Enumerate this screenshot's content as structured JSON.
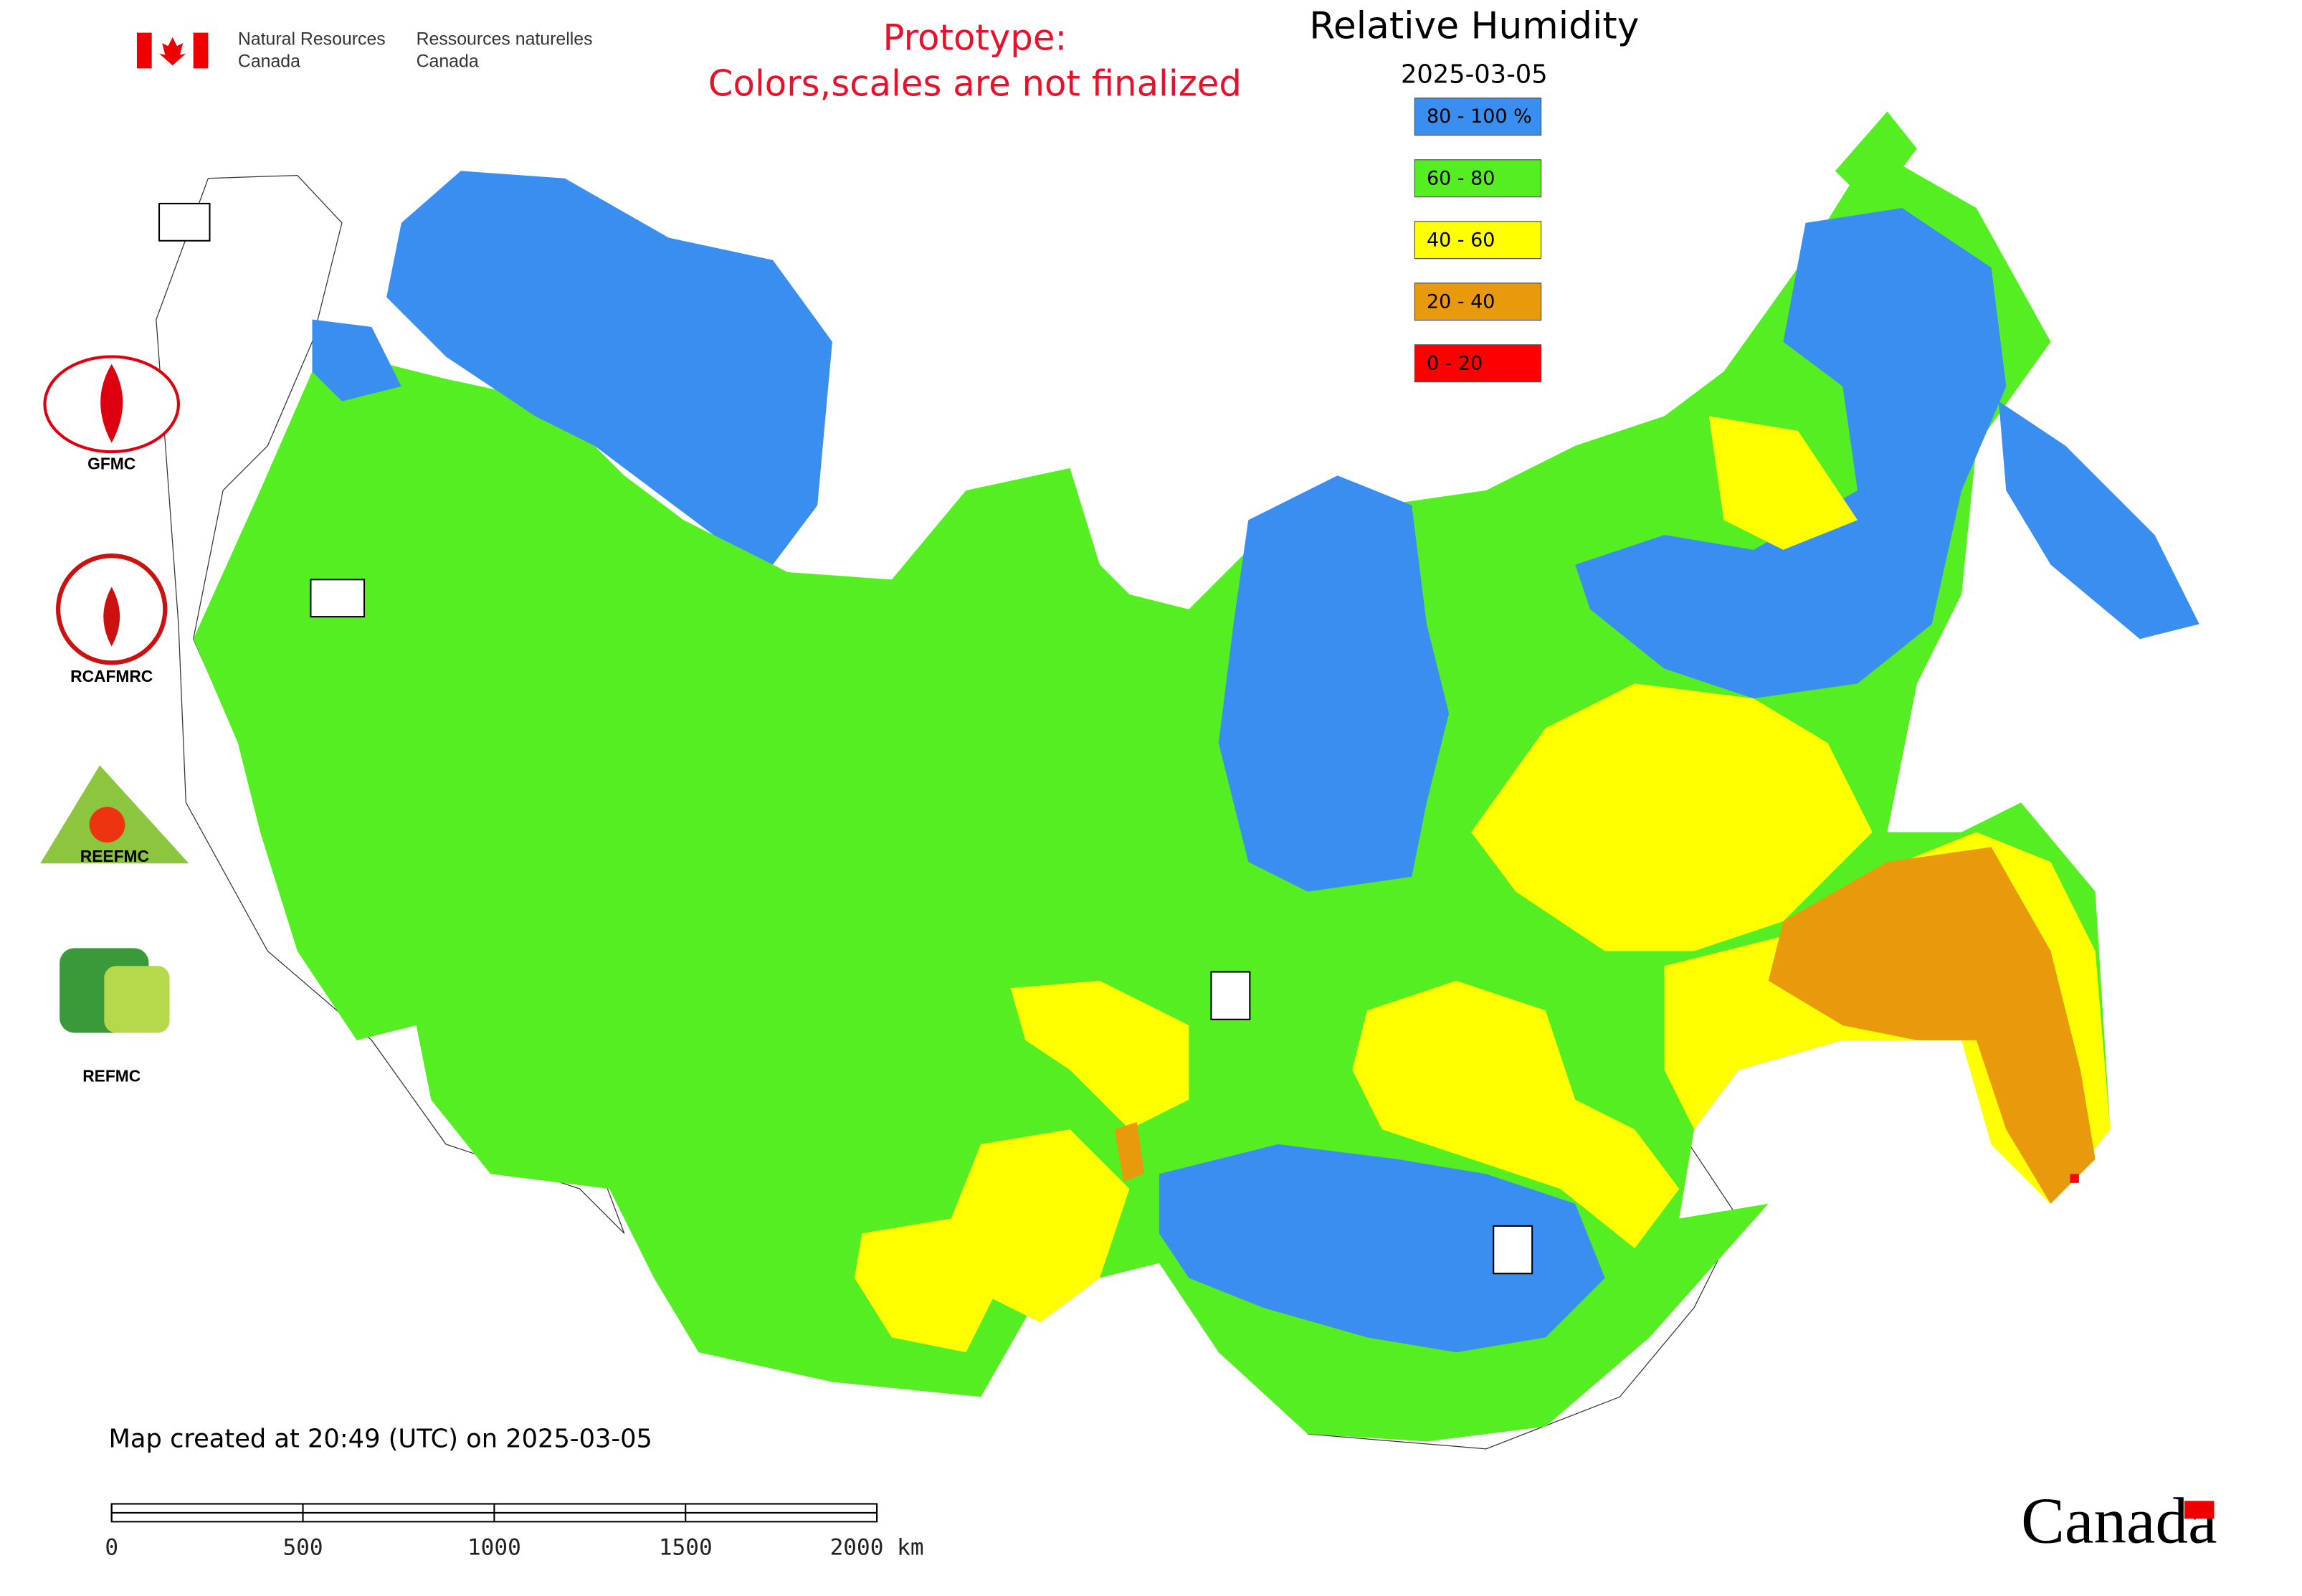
{
  "agency": {
    "en_line1": "Natural Resources",
    "en_line2": "Canada",
    "fr_line1": "Ressources naturelles",
    "fr_line2": "Canada"
  },
  "notice": {
    "line1": "Prototype:",
    "line2": "Colors,scales are not finalized"
  },
  "map": {
    "title": "Relative Humidity",
    "date": "2025-03-05"
  },
  "legend": [
    {
      "label": "80 - 100 %",
      "color": "#3a8ef0"
    },
    {
      "label": "60 - 80",
      "color": "#55ee22"
    },
    {
      "label": "40 - 60",
      "color": "#ffff00"
    },
    {
      "label": "20 - 40",
      "color": "#e89a0c"
    },
    {
      "label": "0 - 20",
      "color": "#ff0000"
    }
  ],
  "logos": {
    "gfmc": "GFMC",
    "rcafmrc": "RCAFMRC",
    "reefmc": "REEFMC",
    "refmc": "REFMC"
  },
  "footer": {
    "created": "Map created at 20:49 (UTC) on 2025-03-05",
    "scale": [
      "0",
      "500",
      "1000",
      "1500",
      "2000 km"
    ],
    "wordmark": "Canada"
  }
}
